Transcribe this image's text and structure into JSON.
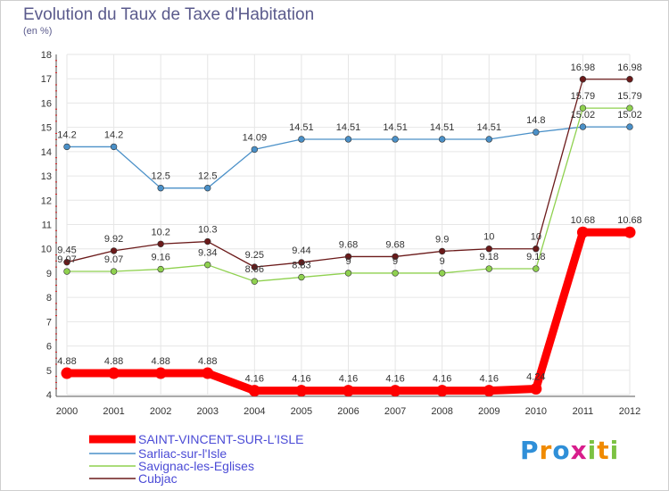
{
  "chart_data": {
    "type": "line",
    "title": "Evolution du Taux de Taxe d'Habitation",
    "ylabel": "(en %)",
    "xlabel": "",
    "x": [
      "2000",
      "2001",
      "2002",
      "2003",
      "2004",
      "2005",
      "2006",
      "2007",
      "2008",
      "2009",
      "2010",
      "2011",
      "2012"
    ],
    "ylim": [
      4,
      18
    ],
    "yticks": [
      4,
      5,
      6,
      7,
      8,
      9,
      10,
      11,
      12,
      13,
      14,
      15,
      16,
      17,
      18
    ],
    "grid": true,
    "legend_position": "bottom-left",
    "series": [
      {
        "name": "SAINT-VINCENT-SUR-L'ISLE",
        "color": "#ff0000",
        "values": [
          4.88,
          4.88,
          4.88,
          4.88,
          4.16,
          4.16,
          4.16,
          4.16,
          4.16,
          4.16,
          4.24,
          10.68,
          10.68
        ],
        "labels": [
          "4.88",
          "4.88",
          "4.88",
          "4.88",
          "4.16",
          "4.16",
          "4.16",
          "4.16",
          "4.16",
          "4.16",
          "4.24",
          "10.68",
          "10.68"
        ]
      },
      {
        "name": "Sarliac-sur-l'Isle",
        "color": "#4a90c8",
        "values": [
          14.2,
          14.2,
          12.5,
          12.5,
          14.09,
          14.51,
          14.51,
          14.51,
          14.51,
          14.51,
          14.8,
          15.02,
          15.02
        ],
        "labels": [
          "14.2",
          "14.2",
          "12.5",
          "12.5",
          "14.09",
          "14.51",
          "14.51",
          "14.51",
          "14.51",
          "14.51",
          "14.8",
          "15.02",
          "15.02"
        ]
      },
      {
        "name": "Savignac-les-Eglises",
        "color": "#8fd14f",
        "values": [
          9.07,
          9.07,
          9.16,
          9.34,
          8.66,
          8.83,
          9,
          9,
          9,
          9.18,
          9.18,
          15.79,
          15.79
        ],
        "labels": [
          "9.07",
          "9.07",
          "9.16",
          "9.34",
          "8.66",
          "8.83",
          "9",
          "9",
          "9",
          "9.18",
          "9.18",
          "15.79",
          "15.79"
        ]
      },
      {
        "name": "Cubjac",
        "color": "#6b1a1a",
        "values": [
          9.45,
          9.92,
          10.2,
          10.3,
          9.25,
          9.44,
          9.68,
          9.68,
          9.9,
          10,
          10,
          16.98,
          16.98
        ],
        "labels": [
          "9.45",
          "9.92",
          "10.2",
          "10.3",
          "9.25",
          "9.44",
          "9.68",
          "9.68",
          "9.9",
          "10",
          "10",
          "16.98",
          "16.98"
        ]
      }
    ]
  },
  "branding": {
    "logo_letters": [
      "P",
      "r",
      "o",
      "x",
      "i",
      "t",
      "i"
    ],
    "logo_colors": [
      "#2f8fd8",
      "#f08a00",
      "#2f8fd8",
      "#d81e8c",
      "#7cc242",
      "#f08a00",
      "#7cc242"
    ]
  }
}
